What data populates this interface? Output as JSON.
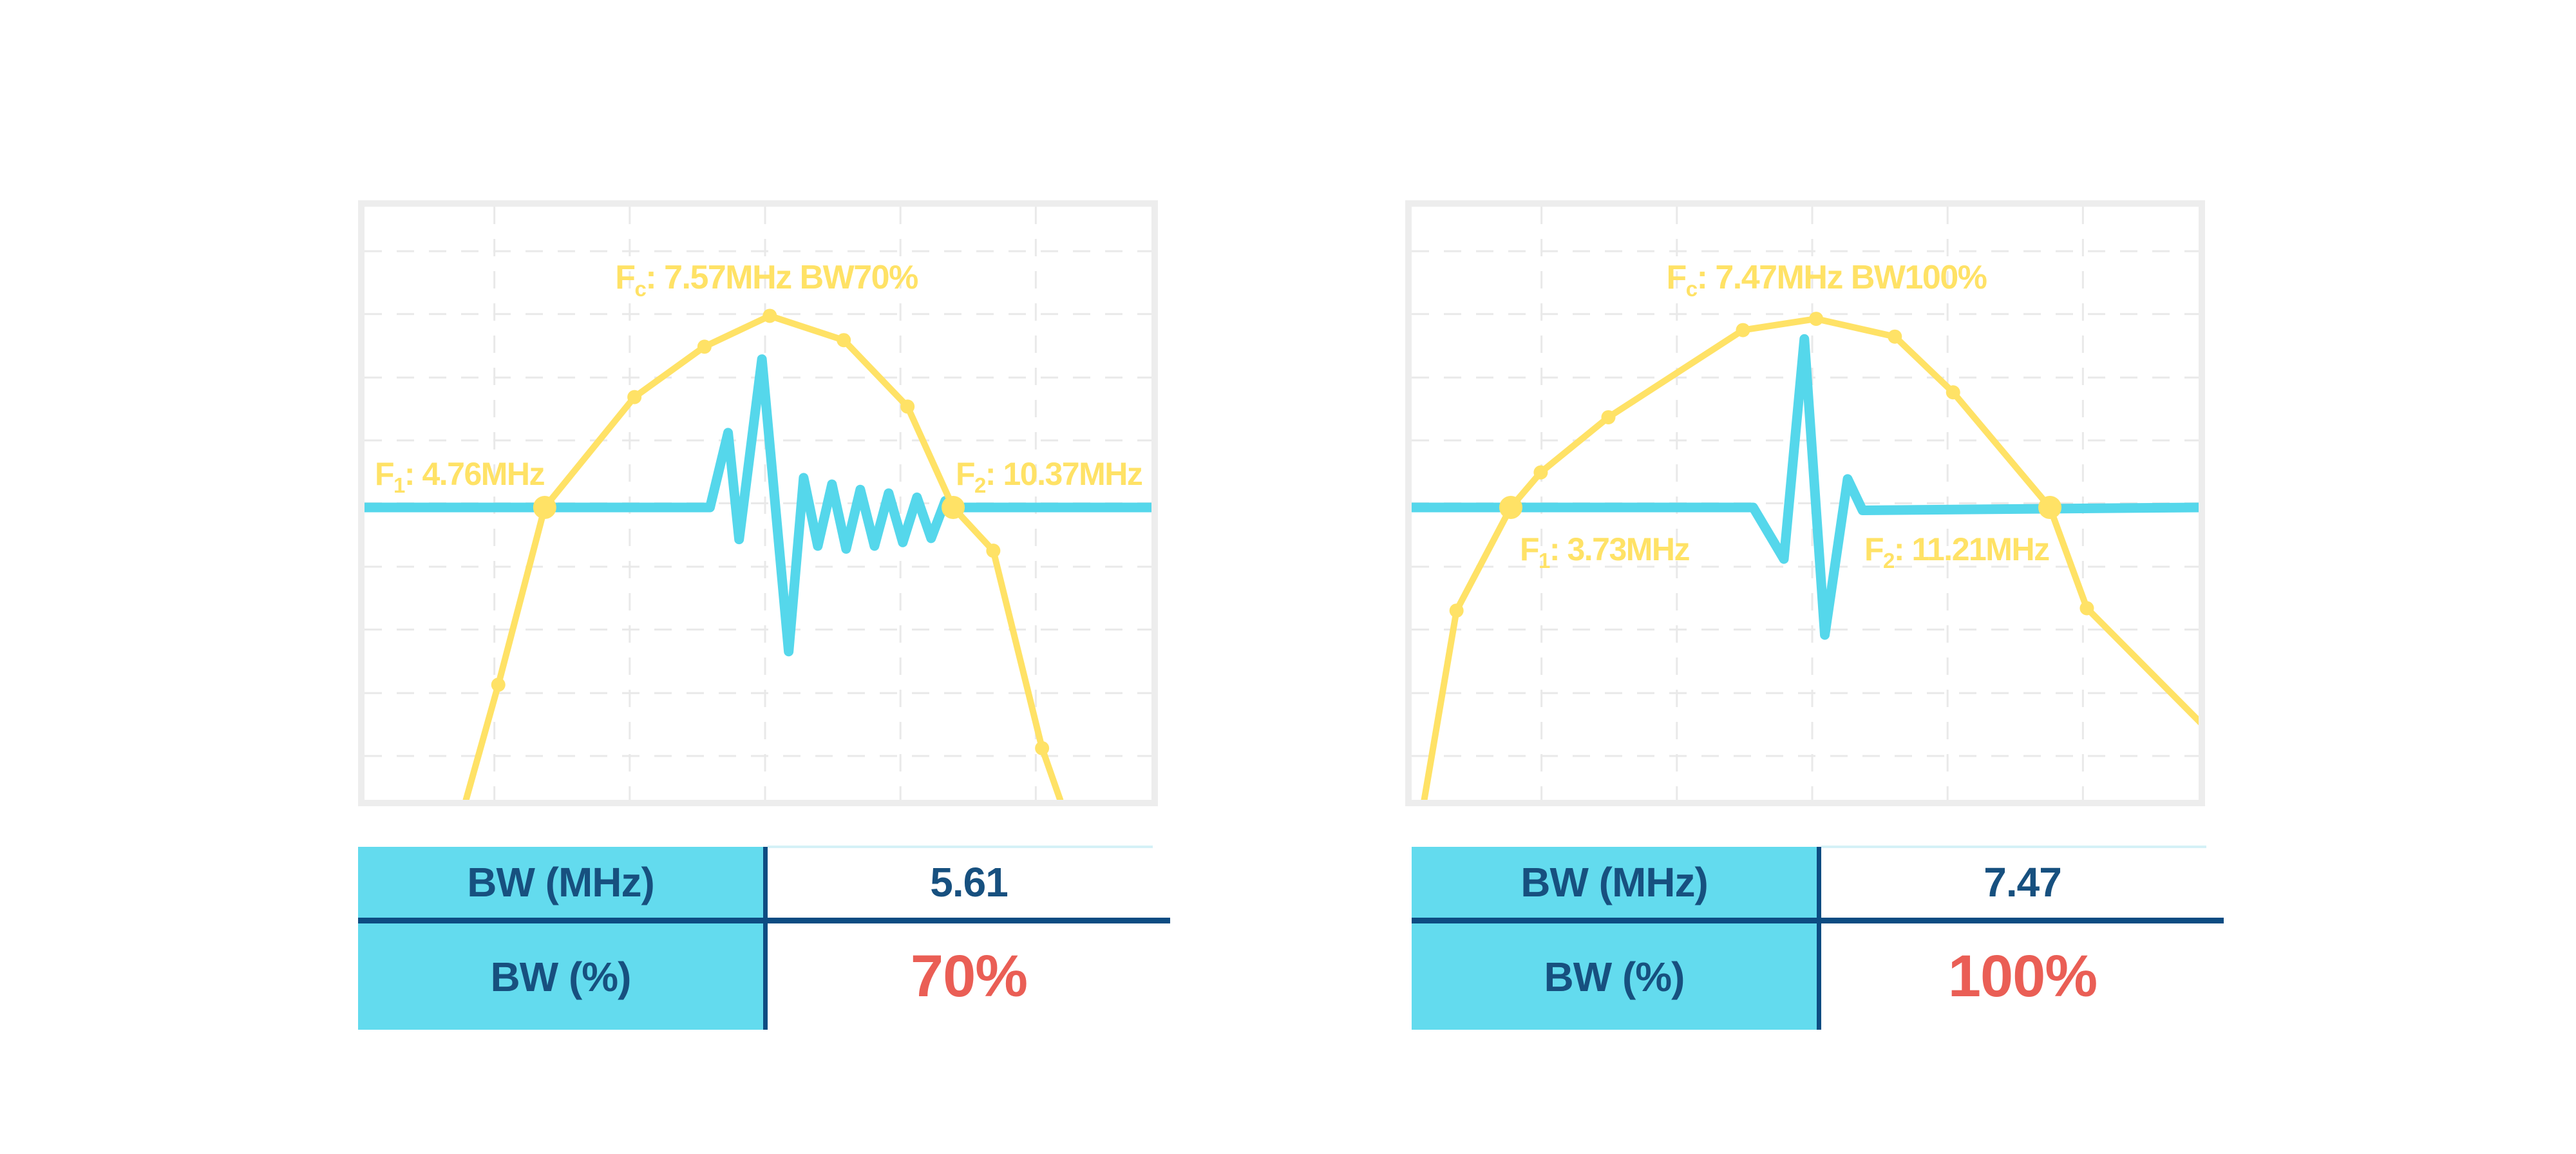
{
  "page": {
    "background": "#FFFFFF"
  },
  "colors": {
    "spectrum_yellow": "#FFE266",
    "waveform_cyan": "#55D7EB",
    "table_header_cyan": "#63DBEE",
    "navy_text": "#17507F",
    "navy_rule": "#0D4C82",
    "highlight_red": "#EA5E55",
    "frame_gray": "#EDEDED",
    "grid_gray": "#E9E9E9",
    "light_rule": "#D5F1F7"
  },
  "chart_data": [
    {
      "type": "line",
      "xlabel": "",
      "ylabel": "",
      "legend": "none",
      "grid": {
        "style": "dashed",
        "v_lines": [
          0.165,
          0.337,
          0.509,
          0.681,
          0.853
        ],
        "h_lines": [
          0.075,
          0.181,
          0.288,
          0.394,
          0.5,
          0.607,
          0.713,
          0.82,
          0.926
        ]
      },
      "annotations": {
        "fc": [
          "F",
          "c",
          ": 7.57MHz BW70%"
        ],
        "f1": [
          "F",
          "1",
          ": 4.76MHz"
        ],
        "f2": [
          "F",
          "2",
          ": 10.37MHz"
        ]
      },
      "values": {
        "fc_mhz": 7.57,
        "f1_mhz": 4.76,
        "f2_mhz": 10.37,
        "bw_mhz": 5.61,
        "bw_pct": 70
      },
      "series": [
        {
          "name": "pulse-waveform",
          "points": [
            [
              0.0,
              0.507
            ],
            [
              0.439,
              0.507
            ],
            [
              0.462,
              0.381
            ],
            [
              0.476,
              0.561
            ],
            [
              0.505,
              0.257
            ],
            [
              0.539,
              0.75
            ],
            [
              0.558,
              0.457
            ],
            [
              0.576,
              0.572
            ],
            [
              0.594,
              0.468
            ],
            [
              0.612,
              0.577
            ],
            [
              0.63,
              0.477
            ],
            [
              0.648,
              0.572
            ],
            [
              0.666,
              0.483
            ],
            [
              0.684,
              0.566
            ],
            [
              0.702,
              0.49
            ],
            [
              0.72,
              0.559
            ],
            [
              0.738,
              0.496
            ],
            [
              0.748,
              0.507
            ],
            [
              1.0,
              0.507
            ]
          ]
        },
        {
          "name": "spectrum",
          "points": [
            [
              0.129,
              1.0,
              ""
            ],
            [
              0.17,
              0.806,
              "small"
            ],
            [
              0.229,
              0.507,
              "big"
            ],
            [
              0.343,
              0.321,
              "small"
            ],
            [
              0.432,
              0.236,
              "small"
            ],
            [
              0.515,
              0.184,
              "small"
            ],
            [
              0.609,
              0.225,
              "small"
            ],
            [
              0.69,
              0.337,
              "small"
            ],
            [
              0.748,
              0.507,
              "big"
            ],
            [
              0.799,
              0.58,
              "small"
            ],
            [
              0.861,
              0.913,
              "small"
            ],
            [
              0.884,
              1.0,
              ""
            ]
          ]
        }
      ],
      "table": {
        "rows": [
          {
            "label": "BW (MHz)",
            "value": "5.61"
          },
          {
            "label": "BW (%)",
            "value": "70%"
          }
        ]
      }
    },
    {
      "type": "line",
      "xlabel": "",
      "ylabel": "",
      "legend": "none",
      "grid": {
        "style": "dashed",
        "v_lines": [
          0.165,
          0.337,
          0.509,
          0.681,
          0.853
        ],
        "h_lines": [
          0.075,
          0.181,
          0.288,
          0.394,
          0.5,
          0.607,
          0.713,
          0.82,
          0.926
        ]
      },
      "annotations": {
        "fc": [
          "F",
          "c",
          ": 7.47MHz BW100%"
        ],
        "f1": [
          "F",
          "1",
          ": 3.73MHz"
        ],
        "f2": [
          "F",
          "2",
          ": 11.21MHz"
        ]
      },
      "values": {
        "fc_mhz": 7.47,
        "f1_mhz": 3.73,
        "f2_mhz": 11.21,
        "bw_mhz": 7.47,
        "bw_pct": 100
      },
      "series": [
        {
          "name": "pulse-waveform",
          "points": [
            [
              0.0,
              0.507
            ],
            [
              0.434,
              0.507
            ],
            [
              0.473,
              0.594
            ],
            [
              0.499,
              0.223
            ],
            [
              0.525,
              0.722
            ],
            [
              0.554,
              0.459
            ],
            [
              0.573,
              0.512
            ],
            [
              1.0,
              0.507
            ]
          ]
        },
        {
          "name": "spectrum",
          "points": [
            [
              0.016,
              1.0,
              ""
            ],
            [
              0.057,
              0.681,
              "small"
            ],
            [
              0.126,
              0.507,
              "big"
            ],
            [
              0.164,
              0.448,
              "small"
            ],
            [
              0.25,
              0.355,
              "small"
            ],
            [
              0.421,
              0.208,
              "small"
            ],
            [
              0.514,
              0.189,
              "small"
            ],
            [
              0.614,
              0.219,
              "small"
            ],
            [
              0.688,
              0.313,
              "small"
            ],
            [
              0.811,
              0.507,
              "big"
            ],
            [
              0.858,
              0.677,
              "small"
            ],
            [
              1.019,
              0.892,
              "small"
            ]
          ]
        }
      ],
      "table": {
        "rows": [
          {
            "label": "BW (MHz)",
            "value": "7.47"
          },
          {
            "label": "BW (%)",
            "value": "100%"
          }
        ]
      }
    }
  ]
}
